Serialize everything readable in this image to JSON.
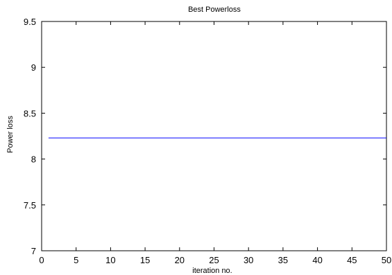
{
  "chart_data": {
    "type": "line",
    "title": "Best Powerloss",
    "xlabel": "iteration no.",
    "ylabel": "Power loss",
    "xlim": [
      0,
      50
    ],
    "ylim": [
      7,
      9.5
    ],
    "x_ticks": [
      0,
      5,
      10,
      15,
      20,
      25,
      30,
      35,
      40,
      45,
      50
    ],
    "y_ticks": [
      7,
      7.5,
      8,
      8.5,
      9,
      9.5
    ],
    "x_tick_labels": [
      "0",
      "5",
      "10",
      "15",
      "20",
      "25",
      "30",
      "35",
      "40",
      "45",
      "50"
    ],
    "y_tick_labels": [
      "7",
      "7.5",
      "8",
      "8.5",
      "9",
      "9.5"
    ],
    "grid": false,
    "legend": "none",
    "series": [
      {
        "color": "#0000ff",
        "x": [
          1,
          50
        ],
        "y": [
          8.23,
          8.23
        ]
      }
    ]
  }
}
